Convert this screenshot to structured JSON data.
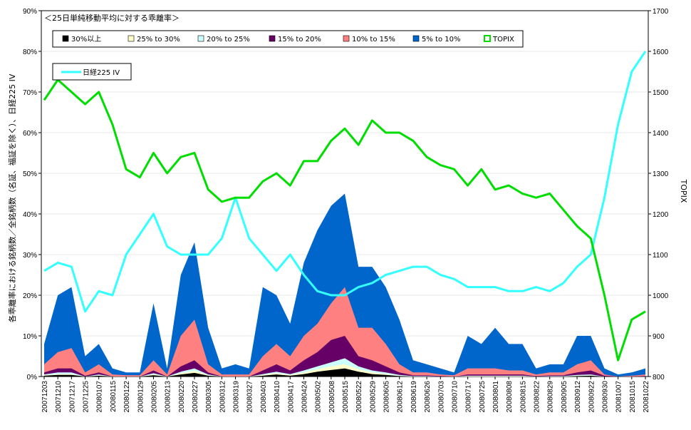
{
  "chart_data": {
    "type": "area",
    "title": "＜25日単純移動平均に対する乖離率＞",
    "ylabel_left": "各乖離率における銘柄数／全銘柄数（名証、福証を除く）、日経225 IV",
    "ylabel_right": "TOPIX",
    "ylim_left": [
      0,
      90
    ],
    "ylim_right": [
      800,
      1700
    ],
    "y_ticks_left": [
      "0%",
      "10%",
      "20%",
      "30%",
      "40%",
      "50%",
      "60%",
      "70%",
      "80%",
      "90%"
    ],
    "y_ticks_right": [
      "800",
      "900",
      "1000",
      "1100",
      "1200",
      "1300",
      "1400",
      "1500",
      "1600",
      "1700"
    ],
    "x_tick_labels": [
      "20071203",
      "20071210",
      "20071217",
      "20071225",
      "20080107",
      "20080115",
      "20080122",
      "20080129",
      "20080205",
      "20080213",
      "20080220",
      "20080227",
      "20080305",
      "20080312",
      "20080319",
      "20080327",
      "20080403",
      "20080410",
      "20080417",
      "20080424",
      "20080502",
      "20080508",
      "20080515",
      "20080522",
      "20080529",
      "20080605",
      "20080612",
      "20080619",
      "20080626",
      "20080703",
      "20080710",
      "20080717",
      "20080725",
      "20080801",
      "20080808",
      "20080815",
      "20080822",
      "20080829",
      "20080905",
      "20080912",
      "20080922",
      "20080930",
      "20081007",
      "20081015",
      "20081022"
    ],
    "colors": {
      "s30": "#000000",
      "s25": "#ffffcc",
      "s20": "#ccffff",
      "s15": "#660066",
      "s10": "#ff8080",
      "s5": "#0066cc",
      "topix": "#00dd00",
      "iv": "#33ffff"
    },
    "legend": [
      {
        "label": "30%以上",
        "color": "#000000"
      },
      {
        "label": "25% to 30%",
        "color": "#ffffcc"
      },
      {
        "label": "20% to 25%",
        "color": "#ccffff"
      },
      {
        "label": "15% to 20%",
        "color": "#660066"
      },
      {
        "label": "10% to 15%",
        "color": "#ff8080"
      },
      {
        "label": "5% to 10%",
        "color": "#0066cc"
      },
      {
        "label": "TOPIX",
        "color": "#00dd00"
      }
    ],
    "legend2": [
      {
        "label": "日経225 IV",
        "color": "#33ffff"
      }
    ],
    "series_note": "values sampled at each labeled date (cumulative stacked %; TOPIX in index points; IV in %)",
    "stack_total_5pct": [
      8,
      20,
      22,
      5,
      8,
      2,
      1,
      1,
      18,
      2,
      25,
      33,
      12,
      2,
      3,
      2,
      22,
      20,
      13,
      28,
      36,
      42,
      45,
      27,
      27,
      22,
      14,
      4,
      3,
      2,
      1,
      10,
      8,
      12,
      8,
      8,
      2,
      3,
      3,
      10,
      10,
      2,
      0.5,
      1,
      2
    ],
    "stack_total_10pct": [
      3,
      6,
      7,
      1,
      3,
      0.5,
      0.3,
      0.3,
      4,
      0.5,
      10,
      14,
      3,
      0.5,
      0.5,
      0.5,
      5,
      8,
      5,
      10,
      13,
      18,
      22,
      12,
      12,
      8,
      3,
      1,
      1,
      0.5,
      0.3,
      2,
      2,
      2,
      1.5,
      1.5,
      0.5,
      1,
      1,
      3,
      4,
      0.5,
      0,
      0.2,
      0.5
    ],
    "stack_total_15pct": [
      1,
      2,
      2,
      0.2,
      1,
      0,
      0,
      0,
      1.5,
      0,
      2.5,
      4,
      1,
      0,
      0,
      0,
      1.5,
      3,
      1.5,
      4,
      6,
      9,
      10,
      5,
      4,
      2.5,
      1,
      0.3,
      0.3,
      0.1,
      0,
      0.5,
      0.5,
      0.5,
      0.5,
      0.5,
      0.1,
      0.3,
      0.3,
      1,
      1.5,
      0.2,
      0,
      0,
      0.1
    ],
    "stack_total_20pct": [
      0.5,
      1,
      1,
      0,
      0.5,
      0,
      0,
      0,
      0.8,
      0,
      1.2,
      2,
      0.5,
      0,
      0,
      0,
      0.6,
      1.2,
      0.6,
      1.5,
      2.5,
      3.5,
      4.5,
      2.5,
      1.5,
      1,
      0.4,
      0.1,
      0.1,
      0,
      0,
      0.2,
      0.2,
      0.2,
      0.2,
      0.2,
      0,
      0.1,
      0.1,
      0.4,
      0.5,
      0,
      0,
      0,
      0
    ],
    "stack_total_25pct": [
      0.3,
      0.6,
      0.6,
      0,
      0.3,
      0,
      0,
      0,
      0.5,
      0,
      0.8,
      1.4,
      0.3,
      0,
      0,
      0,
      0.4,
      0.8,
      0.4,
      1,
      1.8,
      2.5,
      3,
      1.8,
      1,
      0.6,
      0.2,
      0,
      0,
      0,
      0,
      0.1,
      0.1,
      0.1,
      0.1,
      0.1,
      0,
      0,
      0,
      0.2,
      0.3,
      0,
      0,
      0,
      0
    ],
    "stack_total_30pct": [
      0.2,
      0.4,
      0.4,
      0,
      0.2,
      0,
      0,
      0,
      0.3,
      0,
      0.5,
      0.9,
      0.2,
      0,
      0,
      0,
      0.2,
      0.5,
      0.2,
      0.6,
      1.2,
      1.6,
      2,
      1.2,
      0.6,
      0.4,
      0.1,
      0,
      0,
      0,
      0,
      0,
      0,
      0,
      0,
      0,
      0,
      0,
      0,
      0.1,
      0.2,
      0,
      0,
      0,
      0
    ],
    "topix": [
      1480,
      1530,
      1500,
      1470,
      1500,
      1420,
      1310,
      1290,
      1350,
      1300,
      1340,
      1350,
      1260,
      1230,
      1240,
      1240,
      1280,
      1300,
      1270,
      1330,
      1330,
      1380,
      1410,
      1370,
      1430,
      1400,
      1400,
      1380,
      1340,
      1320,
      1310,
      1270,
      1310,
      1260,
      1270,
      1250,
      1240,
      1250,
      1210,
      1170,
      1140,
      1000,
      840,
      940,
      960
    ],
    "iv": [
      26,
      28,
      27,
      16,
      21,
      20,
      30,
      35,
      40,
      32,
      30,
      30,
      30,
      34,
      44,
      34,
      30,
      26,
      30,
      25,
      21,
      20,
      20,
      22,
      23,
      25,
      26,
      27,
      27,
      25,
      24,
      22,
      22,
      22,
      21,
      21,
      22,
      21,
      23,
      27,
      30,
      44,
      62,
      75,
      80
    ]
  }
}
